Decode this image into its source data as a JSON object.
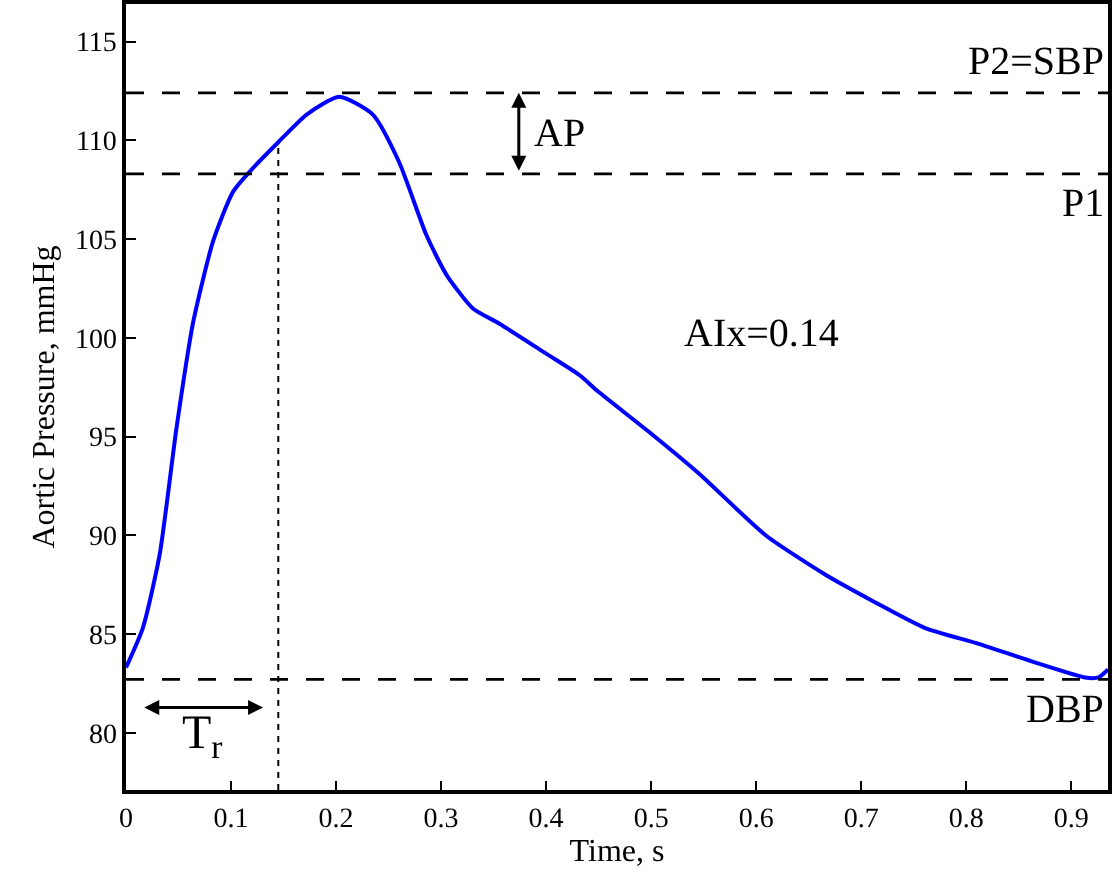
{
  "chart_data": {
    "type": "line",
    "xlabel": "Time, s",
    "ylabel": "Aortic Pressure, mmHg",
    "x": [
      0,
      0.016,
      0.032,
      0.048,
      0.064,
      0.083,
      0.102,
      0.121,
      0.145,
      0.172,
      0.203,
      0.235,
      0.26,
      0.286,
      0.305,
      0.33,
      0.356,
      0.4,
      0.432,
      0.449,
      0.501,
      0.546,
      0.609,
      0.666,
      0.71,
      0.761,
      0.812,
      0.863,
      0.913,
      0.926,
      0.935
    ],
    "series": [
      {
        "color": "#0000ff",
        "values": [
          83.3,
          85.3,
          89.0,
          95.4,
          100.8,
          104.9,
          107.4,
          108.6,
          109.9,
          111.3,
          112.2,
          111.3,
          108.9,
          105.2,
          103.2,
          101.5,
          100.7,
          99.2,
          98.1,
          97.3,
          95.1,
          93.1,
          90.0,
          88.0,
          86.7,
          85.3,
          84.5,
          83.6,
          82.8,
          82.8,
          83.2
        ]
      }
    ],
    "xlim": [
      0,
      0.935
    ],
    "xticks": [
      0,
      0.1,
      0.2,
      0.3,
      0.4,
      0.5,
      0.6,
      0.7,
      0.8,
      0.9
    ],
    "ylim": [
      77.1,
      116.9
    ],
    "yticks": [
      80,
      85,
      90,
      95,
      100,
      105,
      110,
      115
    ],
    "legend": false,
    "marker": "none",
    "line_style": "solid",
    "ref_lines": [
      {
        "axis": "y",
        "value": 112.4,
        "label": "P2=SBP",
        "color": "#000000",
        "line_style": "dashed"
      },
      {
        "axis": "y",
        "value": 108.3,
        "label": "P1",
        "color": "#000000",
        "line_style": "dashed"
      },
      {
        "axis": "y",
        "value": 82.7,
        "label": "DBP",
        "color": "#000000",
        "line_style": "dashed"
      },
      {
        "axis": "x",
        "value": 0.145,
        "label": "T$_{r}$",
        "color": "#000000",
        "line_style": "dotted"
      }
    ],
    "annotations": [
      "AP",
      "AIx=0.14"
    ]
  }
}
